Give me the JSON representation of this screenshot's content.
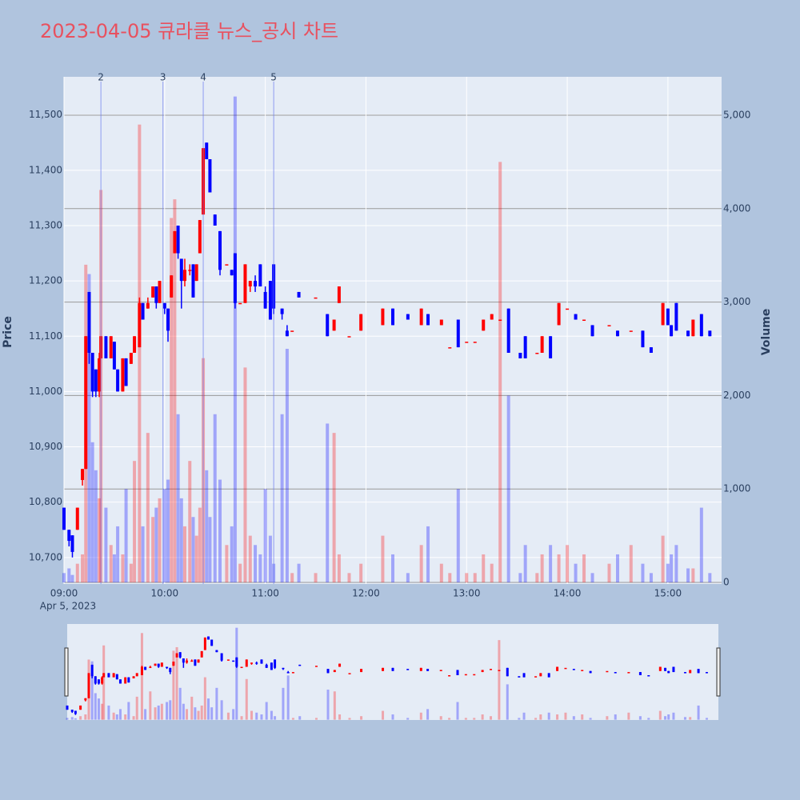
{
  "chart_data": {
    "type": "candlestick",
    "title": "2023-04-05 큐라클 뉴스_공시 차트",
    "y_label": "Price",
    "y2_label": "Volume",
    "x_date_label": "Apr 5, 2023",
    "increasing_color": "#ff0000",
    "decreasing_color": "#0000ff",
    "xlim": [
      "09:00",
      "15:32"
    ],
    "xticks": [
      "09:00",
      "10:00",
      "11:00",
      "12:00",
      "13:00",
      "14:00",
      "15:00"
    ],
    "ylim": [
      10652,
      11569
    ],
    "yticks": [
      {
        "value": 10700,
        "label": "10,700"
      },
      {
        "value": 10800,
        "label": "10,800"
      },
      {
        "value": 10900,
        "label": "10,900"
      },
      {
        "value": 11000,
        "label": "11,000"
      },
      {
        "value": 11100,
        "label": "11,100"
      },
      {
        "value": 11200,
        "label": "11,200"
      },
      {
        "value": 11300,
        "label": "11,300"
      },
      {
        "value": 11400,
        "label": "11,400"
      },
      {
        "value": 11500,
        "label": "11,500"
      }
    ],
    "y2lim": [
      -17,
      5411
    ],
    "y2ticks": [
      0,
      {
        "value": 1000,
        "label": "1,000"
      },
      {
        "value": 2000,
        "label": "2,000"
      },
      {
        "value": 3000,
        "label": "3,000"
      },
      {
        "value": 4000,
        "label": "4,000"
      },
      {
        "value": 5000,
        "label": "5,000"
      }
    ],
    "annotations": [
      {
        "x": "09:22",
        "label": "2"
      },
      {
        "x": "09:59",
        "label": "3"
      },
      {
        "x": "10:23",
        "label": "4"
      },
      {
        "x": "11:05",
        "label": "5"
      }
    ],
    "x": [
      "09:00",
      "09:03",
      "09:05",
      "09:08",
      "09:11",
      "09:13",
      "09:15",
      "09:17",
      "09:19",
      "09:21",
      "09:22",
      "09:25",
      "09:28",
      "09:30",
      "09:32",
      "09:35",
      "09:37",
      "09:40",
      "09:42",
      "09:45",
      "09:47",
      "09:50",
      "09:53",
      "09:55",
      "09:57",
      "10:00",
      "10:02",
      "10:04",
      "10:06",
      "10:08",
      "10:10",
      "10:12",
      "10:15",
      "10:17",
      "10:19",
      "10:21",
      "10:23",
      "10:25",
      "10:27",
      "10:30",
      "10:33",
      "10:37",
      "10:40",
      "10:42",
      "10:45",
      "10:48",
      "10:51",
      "10:54",
      "10:57",
      "11:00",
      "11:03",
      "11:05",
      "11:10",
      "11:13",
      "11:16",
      "11:20",
      "11:30",
      "11:37",
      "11:41",
      "11:44",
      "11:50",
      "11:57",
      "12:10",
      "12:16",
      "12:25",
      "12:33",
      "12:37",
      "12:45",
      "12:50",
      "12:55",
      "13:00",
      "13:05",
      "13:10",
      "13:15",
      "13:20",
      "13:25",
      "13:32",
      "13:35",
      "13:42",
      "13:45",
      "13:50",
      "13:55",
      "14:00",
      "14:05",
      "14:10",
      "14:15",
      "14:25",
      "14:30",
      "14:38",
      "14:45",
      "14:50",
      "14:57",
      "15:00",
      "15:02",
      "15:05",
      "15:12",
      "15:15",
      "15:20",
      "15:25"
    ],
    "open": [
      10790,
      10750,
      10740,
      10750,
      10840,
      10860,
      11180,
      11070,
      11040,
      11000,
      11060,
      11100,
      11060,
      11090,
      11040,
      11000,
      11060,
      11050,
      11070,
      11080,
      11160,
      11150,
      11170,
      11190,
      11160,
      11160,
      11150,
      11170,
      11250,
      11300,
      11240,
      11200,
      11220,
      11230,
      11200,
      11250,
      11320,
      11450,
      11420,
      11320,
      11290,
      11230,
      11220,
      11250,
      11160,
      11160,
      11190,
      11200,
      11230,
      11180,
      11200,
      11230,
      11150,
      11110,
      11110,
      11180,
      11170,
      11140,
      11110,
      11160,
      11100,
      11110,
      11120,
      11150,
      11140,
      11120,
      11140,
      11120,
      11080,
      11130,
      11090,
      11090,
      11110,
      11130,
      11130,
      11150,
      11070,
      11100,
      11070,
      11070,
      11100,
      11120,
      11150,
      11140,
      11130,
      11120,
      11120,
      11110,
      11110,
      11110,
      11080,
      11120,
      11150,
      11120,
      11160,
      11110,
      11100,
      11140,
      11110
    ],
    "high": [
      10790,
      10750,
      10740,
      10790,
      10860,
      11100,
      11180,
      11070,
      11040,
      11070,
      11100,
      11100,
      11100,
      11090,
      11040,
      11060,
      11060,
      11070,
      11100,
      11170,
      11160,
      11170,
      11190,
      11190,
      11200,
      11160,
      11150,
      11210,
      11290,
      11300,
      11240,
      11240,
      11230,
      11230,
      11230,
      11310,
      11440,
      11450,
      11420,
      11320,
      11290,
      11230,
      11220,
      11250,
      11160,
      11230,
      11200,
      11210,
      11230,
      11190,
      11200,
      11230,
      11150,
      11120,
      11110,
      11180,
      11170,
      11140,
      11130,
      11190,
      11100,
      11140,
      11150,
      11150,
      11140,
      11150,
      11140,
      11130,
      11080,
      11130,
      11090,
      11090,
      11130,
      11140,
      11130,
      11150,
      11070,
      11100,
      11070,
      11100,
      11100,
      11160,
      11150,
      11140,
      11130,
      11120,
      11120,
      11110,
      11110,
      11110,
      11080,
      11160,
      11150,
      11120,
      11160,
      11110,
      11130,
      11140,
      11110
    ],
    "low": [
      10750,
      10720,
      10700,
      10750,
      10830,
      10860,
      11050,
      10990,
      10990,
      10990,
      11060,
      11060,
      11060,
      11040,
      11000,
      11000,
      11010,
      11050,
      11070,
      11080,
      11130,
      11150,
      11170,
      11150,
      11160,
      11140,
      11090,
      11170,
      11250,
      11240,
      11150,
      11190,
      11210,
      11170,
      11200,
      11250,
      11320,
      11420,
      11360,
      11300,
      11210,
      11230,
      11210,
      11150,
      11160,
      11160,
      11180,
      11180,
      11190,
      11150,
      11130,
      11140,
      11130,
      11100,
      11110,
      11170,
      11170,
      11100,
      11110,
      11160,
      11100,
      11110,
      11120,
      11120,
      11130,
      11120,
      11120,
      11120,
      11080,
      11080,
      11090,
      11090,
      11110,
      11130,
      11130,
      11070,
      11060,
      11060,
      11070,
      11070,
      11060,
      11120,
      11150,
      11130,
      11130,
      11100,
      11120,
      11100,
      11110,
      11080,
      11070,
      11120,
      11120,
      11100,
      11110,
      11100,
      11100,
      11100,
      11100
    ],
    "close": [
      10750,
      10730,
      10710,
      10790,
      10860,
      11100,
      11070,
      11000,
      11000,
      11060,
      11100,
      11060,
      11100,
      11040,
      11000,
      11060,
      11010,
      11070,
      11100,
      11160,
      11130,
      11160,
      11190,
      11160,
      11200,
      11150,
      11110,
      11210,
      11290,
      11250,
      11200,
      11220,
      11220,
      11170,
      11230,
      11310,
      11440,
      11420,
      11360,
      11300,
      11220,
      11230,
      11210,
      11160,
      11160,
      11230,
      11200,
      11190,
      11190,
      11150,
      11130,
      11150,
      11140,
      11100,
      11110,
      11170,
      11170,
      11100,
      11130,
      11190,
      11100,
      11140,
      11150,
      11120,
      11130,
      11150,
      11120,
      11130,
      11080,
      11080,
      11090,
      11090,
      11130,
      11140,
      11130,
      11070,
      11060,
      11060,
      11070,
      11100,
      11060,
      11160,
      11150,
      11130,
      11130,
      11100,
      11120,
      11100,
      11110,
      11080,
      11070,
      11160,
      11120,
      11100,
      11110,
      11100,
      11130,
      11100,
      11100
    ],
    "volume": [
      100,
      150,
      80,
      200,
      300,
      3400,
      3300,
      1500,
      1200,
      900,
      4200,
      800,
      400,
      300,
      600,
      300,
      1000,
      200,
      1300,
      4900,
      600,
      1600,
      700,
      800,
      900,
      1000,
      1100,
      3900,
      4100,
      1800,
      900,
      600,
      1300,
      700,
      500,
      800,
      2400,
      1200,
      700,
      1800,
      1100,
      400,
      600,
      5200,
      200,
      2300,
      500,
      400,
      300,
      1000,
      500,
      200,
      1800,
      2500,
      100,
      200,
      100,
      1700,
      1600,
      300,
      100,
      200,
      500,
      300,
      100,
      400,
      600,
      200,
      100,
      1000,
      100,
      100,
      300,
      200,
      4500,
      2000,
      100,
      400,
      100,
      300,
      400,
      300,
      400,
      200,
      300,
      100,
      200,
      300,
      400,
      200,
      100,
      500,
      200,
      300,
      400,
      150,
      150,
      800,
      100
    ]
  }
}
